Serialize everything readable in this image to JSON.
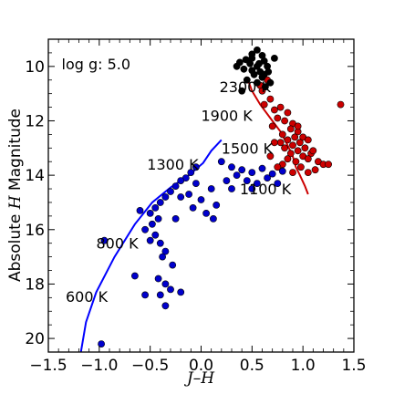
{
  "chart_data": {
    "type": "scatter",
    "title": "",
    "xlabel": "J–H",
    "ylabel_prefix": "Absolute ",
    "ylabel_italic": "H",
    "ylabel_suffix": " Magnitude",
    "xlim": [
      -1.5,
      1.5
    ],
    "ylim": [
      20.5,
      9.0
    ],
    "y_inverted": true,
    "grid": false,
    "xticks": [
      -1.5,
      -1.0,
      -0.5,
      0.0,
      0.5,
      1.0,
      1.5
    ],
    "xtick_labels": [
      "−1.5",
      "−1.0",
      "−0.5",
      "0.0",
      "0.5",
      "1.0",
      "1.5"
    ],
    "yticks": [
      10,
      12,
      14,
      16,
      18,
      20
    ],
    "ytick_labels": [
      "10",
      "12",
      "14",
      "16",
      "18",
      "20"
    ],
    "annotations": [
      {
        "text": "log g: 5.0",
        "x": -1.37,
        "y": 9.9
      },
      {
        "text": "2300 K",
        "x": 0.18,
        "y": 10.75
      },
      {
        "text": "1900 K",
        "x": 0.0,
        "y": 11.8
      },
      {
        "text": "1500 K",
        "x": 0.2,
        "y": 13.0
      },
      {
        "text": "1300 K",
        "x": -0.53,
        "y": 13.6
      },
      {
        "text": "1100 K",
        "x": 0.38,
        "y": 14.5
      },
      {
        "text": "800 K",
        "x": -1.03,
        "y": 16.5
      },
      {
        "text": "600 K",
        "x": -1.33,
        "y": 18.45
      }
    ],
    "series": [
      {
        "color": "#0000ff",
        "style": "line",
        "points": [
          [
            -1.18,
            20.5
          ],
          [
            -1.13,
            19.4
          ],
          [
            -1.03,
            18.3
          ],
          [
            -0.85,
            17.0
          ],
          [
            -0.65,
            15.8
          ],
          [
            -0.48,
            15.0
          ],
          [
            -0.3,
            14.45
          ],
          [
            -0.12,
            14.0
          ],
          [
            0.02,
            13.55
          ],
          [
            0.1,
            13.1
          ],
          [
            0.2,
            12.7
          ]
        ]
      },
      {
        "color": "#cc0000",
        "style": "line",
        "points": [
          [
            0.45,
            10.4
          ],
          [
            0.5,
            10.9
          ],
          [
            0.58,
            11.4
          ],
          [
            0.68,
            11.9
          ],
          [
            0.78,
            12.4
          ],
          [
            0.85,
            12.9
          ],
          [
            0.9,
            13.3
          ],
          [
            0.93,
            13.7
          ],
          [
            0.97,
            14.0
          ],
          [
            1.02,
            14.4
          ],
          [
            1.05,
            14.7
          ]
        ]
      },
      {
        "color": "#cc0000",
        "style": "scatter",
        "points": [
          [
            0.58,
            10.7
          ],
          [
            0.65,
            10.5
          ],
          [
            0.6,
            10.9
          ],
          [
            0.68,
            11.2
          ],
          [
            0.62,
            11.4
          ],
          [
            0.72,
            11.6
          ],
          [
            0.78,
            11.5
          ],
          [
            0.85,
            11.7
          ],
          [
            0.75,
            11.9
          ],
          [
            0.82,
            12.0
          ],
          [
            0.9,
            12.1
          ],
          [
            0.7,
            12.2
          ],
          [
            0.88,
            12.3
          ],
          [
            0.95,
            12.4
          ],
          [
            0.8,
            12.5
          ],
          [
            0.85,
            12.7
          ],
          [
            0.92,
            12.6
          ],
          [
            1.0,
            12.6
          ],
          [
            0.78,
            12.8
          ],
          [
            0.9,
            12.9
          ],
          [
            0.97,
            12.8
          ],
          [
            1.05,
            12.7
          ],
          [
            0.82,
            13.0
          ],
          [
            0.95,
            13.1
          ],
          [
            1.02,
            13.0
          ],
          [
            0.88,
            13.2
          ],
          [
            1.0,
            13.3
          ],
          [
            1.08,
            13.2
          ],
          [
            0.85,
            13.4
          ],
          [
            0.93,
            13.5
          ],
          [
            1.05,
            13.4
          ],
          [
            1.15,
            13.5
          ],
          [
            0.8,
            13.6
          ],
          [
            0.98,
            13.7
          ],
          [
            1.12,
            13.8
          ],
          [
            1.2,
            13.6
          ],
          [
            0.9,
            13.9
          ],
          [
            1.05,
            13.9
          ],
          [
            0.75,
            13.7
          ],
          [
            1.25,
            13.6
          ],
          [
            1.37,
            11.4
          ],
          [
            0.72,
            12.8
          ],
          [
            0.68,
            13.3
          ],
          [
            0.95,
            12.2
          ],
          [
            1.1,
            13.1
          ]
        ]
      },
      {
        "color": "#000000",
        "style": "scatter",
        "points": [
          [
            0.55,
            9.4
          ],
          [
            0.6,
            9.6
          ],
          [
            0.5,
            9.7
          ],
          [
            0.62,
            9.8
          ],
          [
            0.48,
            9.9
          ],
          [
            0.55,
            10.0
          ],
          [
            0.65,
            10.0
          ],
          [
            0.42,
            10.1
          ],
          [
            0.58,
            10.2
          ],
          [
            0.38,
            9.85
          ],
          [
            0.52,
            10.3
          ],
          [
            0.6,
            10.4
          ],
          [
            0.45,
            10.5
          ],
          [
            0.55,
            10.6
          ],
          [
            0.62,
            10.3
          ],
          [
            0.68,
            10.6
          ],
          [
            0.35,
            10.0
          ],
          [
            0.72,
            9.7
          ],
          [
            0.5,
            10.15
          ],
          [
            0.66,
            10.2
          ],
          [
            0.44,
            9.75
          ],
          [
            0.63,
            10.75
          ],
          [
            0.4,
            10.9
          ],
          [
            0.5,
            9.55
          ],
          [
            0.57,
            9.9
          ]
        ]
      },
      {
        "color": "#0000cc",
        "style": "scatter",
        "points": [
          [
            0.2,
            13.5
          ],
          [
            0.3,
            13.7
          ],
          [
            0.4,
            13.8
          ],
          [
            0.5,
            13.9
          ],
          [
            0.6,
            13.75
          ],
          [
            0.7,
            13.95
          ],
          [
            0.8,
            13.85
          ],
          [
            0.35,
            14.0
          ],
          [
            0.25,
            14.2
          ],
          [
            0.45,
            14.2
          ],
          [
            0.55,
            14.3
          ],
          [
            0.65,
            14.1
          ],
          [
            0.75,
            14.3
          ],
          [
            0.3,
            14.5
          ],
          [
            0.5,
            14.5
          ],
          [
            -0.05,
            13.7
          ],
          [
            -0.1,
            13.9
          ],
          [
            -0.15,
            14.1
          ],
          [
            -0.2,
            14.2
          ],
          [
            -0.25,
            14.4
          ],
          [
            -0.3,
            14.6
          ],
          [
            -0.35,
            14.8
          ],
          [
            -0.05,
            14.3
          ],
          [
            -0.12,
            14.7
          ],
          [
            -0.2,
            14.8
          ],
          [
            0.0,
            14.9
          ],
          [
            -0.4,
            15.0
          ],
          [
            -0.45,
            15.2
          ],
          [
            -0.5,
            15.4
          ],
          [
            -0.6,
            15.3
          ],
          [
            -0.42,
            15.6
          ],
          [
            -0.48,
            15.8
          ],
          [
            -0.55,
            16.0
          ],
          [
            -0.45,
            16.2
          ],
          [
            -0.5,
            16.4
          ],
          [
            -0.4,
            16.5
          ],
          [
            -0.35,
            16.8
          ],
          [
            -0.38,
            17.0
          ],
          [
            -0.28,
            17.3
          ],
          [
            -0.42,
            17.8
          ],
          [
            -0.35,
            18.0
          ],
          [
            -0.3,
            18.2
          ],
          [
            -0.2,
            18.3
          ],
          [
            -0.4,
            18.4
          ],
          [
            -0.55,
            18.4
          ],
          [
            -0.65,
            17.7
          ],
          [
            -0.35,
            18.8
          ],
          [
            -0.98,
            20.2
          ],
          [
            -0.95,
            16.4
          ],
          [
            0.1,
            14.5
          ],
          [
            0.15,
            15.1
          ],
          [
            0.05,
            15.4
          ],
          [
            0.12,
            15.6
          ],
          [
            -0.08,
            15.2
          ],
          [
            -0.25,
            15.6
          ]
        ]
      }
    ]
  }
}
